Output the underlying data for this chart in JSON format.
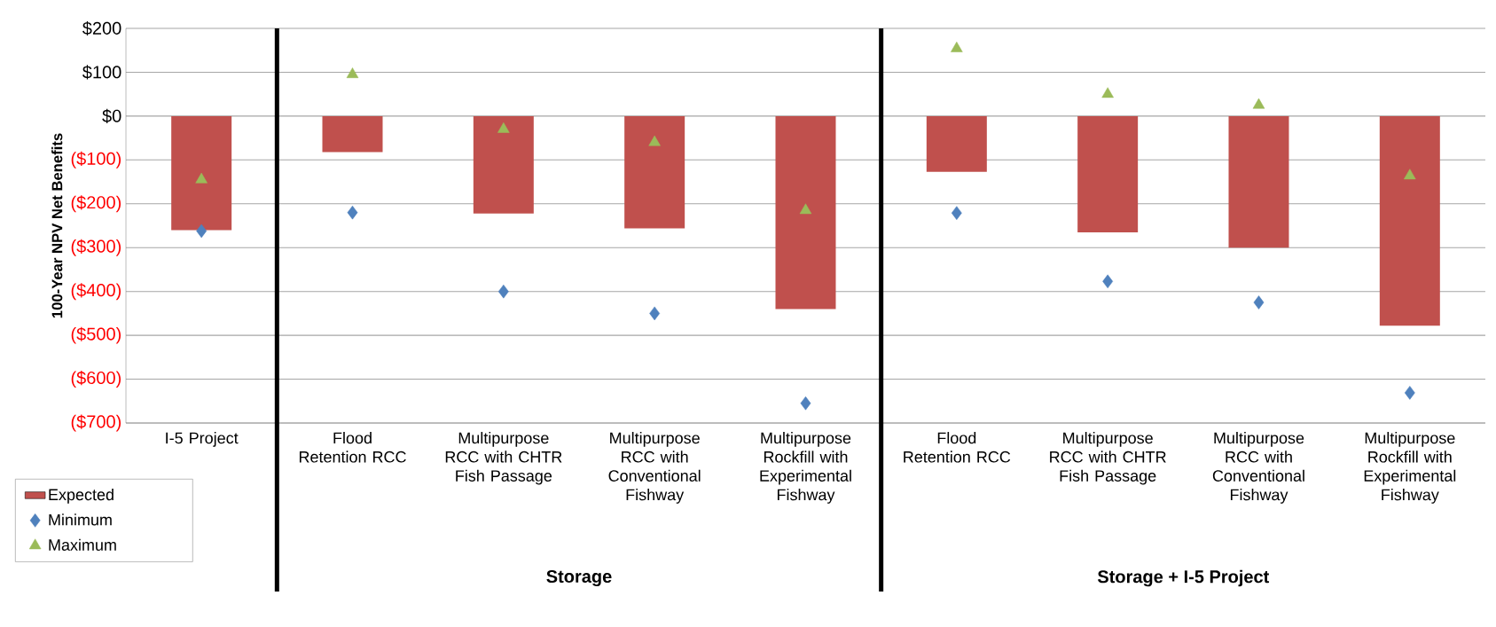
{
  "chart_data": {
    "type": "bar",
    "ylabel": "100-Year NPV Net Benefits",
    "categories": [
      "I-5 Project",
      "Flood Retention RCC",
      "Multipurpose RCC with CHTR Fish Passage",
      "Multipurpose RCC with Conventional Fishway",
      "Multipurpose Rockfill with Experimental Fishway",
      "Flood Retention RCC",
      "Multipurpose RCC with CHTR Fish Passage",
      "Multipurpose RCC with Conventional Fishway",
      "Multipurpose Rockfill with Experimental Fishway"
    ],
    "series": [
      {
        "name": "Expected",
        "color": "#c0504d",
        "values": [
          -260,
          -82,
          -222,
          -256,
          -440,
          -127,
          -265,
          -300,
          -478
        ]
      },
      {
        "name": "Minimum",
        "type": "scatter",
        "marker": "diamond",
        "color": "#4f81bd",
        "values": [
          -262,
          -220,
          -400,
          -450,
          -655,
          -221,
          -377,
          -425,
          -631
        ]
      },
      {
        "name": "Maximum",
        "type": "scatter",
        "marker": "triangle",
        "color": "#9bbb59",
        "values": [
          -145,
          95,
          -30,
          -60,
          -215,
          154,
          50,
          25,
          -136
        ]
      }
    ],
    "ylim": [
      -700,
      200
    ],
    "yticks": [
      {
        "value": 200,
        "label": "$200"
      },
      {
        "value": 100,
        "label": "$100"
      },
      {
        "value": 0,
        "label": "$0"
      },
      {
        "value": -100,
        "label": "($100)"
      },
      {
        "value": -200,
        "label": "($200)"
      },
      {
        "value": -300,
        "label": "($300)"
      },
      {
        "value": -400,
        "label": "($400)"
      },
      {
        "value": -500,
        "label": "($500)"
      },
      {
        "value": -600,
        "label": "($600)"
      },
      {
        "value": -700,
        "label": "($700)"
      }
    ],
    "grid": "y",
    "legend": "bottom left",
    "annotations": [
      "Storage",
      "Storage + I-5 Project"
    ]
  }
}
